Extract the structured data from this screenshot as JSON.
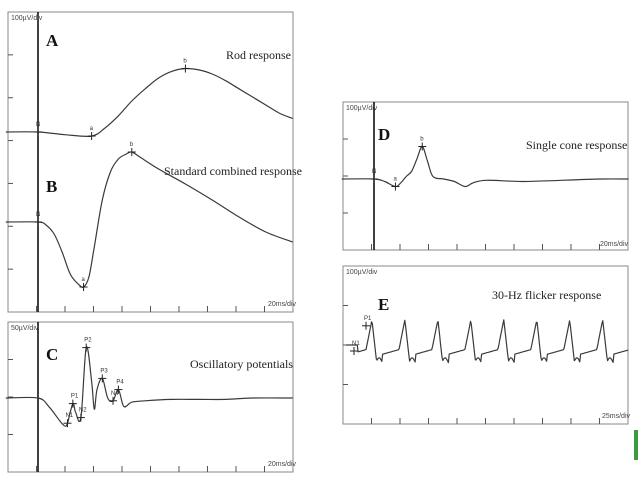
{
  "figure": {
    "accent_color": "#3c9a3c",
    "trace_color": "#3a3a3a"
  },
  "chart_data": [
    {
      "type": "line",
      "id": "A",
      "panel_letter": "A",
      "title": "Rod response",
      "amp_scale": "100µV/div",
      "time_scale": "20ms/div",
      "markers": [
        {
          "label": "N",
          "t": 0
        },
        {
          "label": "a",
          "t": 20
        },
        {
          "label": "b",
          "t": 55
        }
      ],
      "points": [
        [
          -12,
          0
        ],
        [
          0,
          0
        ],
        [
          10,
          -0.2
        ],
        [
          20,
          -0.3
        ],
        [
          25,
          0.3
        ],
        [
          30,
          1.2
        ],
        [
          35,
          2.3
        ],
        [
          40,
          3.2
        ],
        [
          45,
          4.0
        ],
        [
          50,
          4.5
        ],
        [
          55,
          4.7
        ],
        [
          60,
          4.6
        ],
        [
          65,
          4.3
        ],
        [
          70,
          3.8
        ],
        [
          75,
          3.2
        ],
        [
          80,
          2.6
        ],
        [
          85,
          2.0
        ],
        [
          90,
          1.4
        ],
        [
          95,
          1.0
        ]
      ]
    },
    {
      "type": "line",
      "id": "B",
      "panel_letter": "B",
      "title": "Standard combined response",
      "amp_scale": "",
      "time_scale": "20ms/div",
      "markers": [
        {
          "label": "N",
          "t": 0
        },
        {
          "label": "a",
          "t": 17
        },
        {
          "label": "b",
          "t": 35
        }
      ],
      "points": [
        [
          -12,
          0
        ],
        [
          0,
          0
        ],
        [
          3,
          -0.3
        ],
        [
          6,
          -1.2
        ],
        [
          9,
          -3.0
        ],
        [
          12,
          -5.2
        ],
        [
          15,
          -6.2
        ],
        [
          17,
          -6.5
        ],
        [
          19,
          -5.5
        ],
        [
          21,
          -2.5
        ],
        [
          24,
          2.2
        ],
        [
          27,
          5.0
        ],
        [
          30,
          6.3
        ],
        [
          33,
          6.8
        ],
        [
          35,
          7.0
        ],
        [
          38,
          6.5
        ],
        [
          45,
          5.3
        ],
        [
          55,
          3.8
        ],
        [
          65,
          2.2
        ],
        [
          75,
          0.5
        ],
        [
          85,
          -1.0
        ],
        [
          95,
          -2.0
        ]
      ]
    },
    {
      "type": "line",
      "id": "C",
      "panel_letter": "C",
      "title": "Oscillatory potentials",
      "amp_scale": "50µV/div",
      "time_scale": "20ms/div",
      "markers": [
        {
          "label": "P1",
          "t": 13
        },
        {
          "label": "P2",
          "t": 18
        },
        {
          "label": "P3",
          "t": 24
        },
        {
          "label": "P4",
          "t": 30
        },
        {
          "label": "N1",
          "t": 11
        },
        {
          "label": "N2",
          "t": 16
        },
        {
          "label": "N4",
          "t": 28
        }
      ],
      "points": [
        [
          -12,
          0
        ],
        [
          0,
          0
        ],
        [
          4,
          -0.6
        ],
        [
          8,
          -1.6
        ],
        [
          10,
          -2.0
        ],
        [
          11,
          -1.8
        ],
        [
          13,
          -0.4
        ],
        [
          14,
          -1.0
        ],
        [
          16,
          -1.4
        ],
        [
          18,
          3.6
        ],
        [
          20,
          1.2
        ],
        [
          21,
          -0.8
        ],
        [
          22,
          0.6
        ],
        [
          24,
          1.4
        ],
        [
          26,
          0.0
        ],
        [
          28,
          -0.2
        ],
        [
          30,
          0.6
        ],
        [
          32,
          -0.6
        ],
        [
          35,
          -0.3
        ],
        [
          40,
          -0.2
        ],
        [
          50,
          -0.1
        ],
        [
          60,
          -0.1
        ],
        [
          70,
          -0.1
        ],
        [
          80,
          0.0
        ],
        [
          95,
          0.0
        ]
      ]
    },
    {
      "type": "line",
      "id": "D",
      "panel_letter": "D",
      "title": "Single cone response",
      "amp_scale": "100µV/div",
      "time_scale": "20ms/div",
      "markers": [
        {
          "label": "N",
          "t": 0
        },
        {
          "label": "a",
          "t": 8
        },
        {
          "label": "b",
          "t": 18
        }
      ],
      "points": [
        [
          -12,
          0
        ],
        [
          0,
          0
        ],
        [
          4,
          -0.2
        ],
        [
          8,
          -0.6
        ],
        [
          10,
          -0.3
        ],
        [
          12,
          0.2
        ],
        [
          14,
          0.6
        ],
        [
          16,
          1.6
        ],
        [
          18,
          2.6
        ],
        [
          20,
          1.4
        ],
        [
          22,
          0.2
        ],
        [
          26,
          0.0
        ],
        [
          30,
          -0.2
        ],
        [
          34,
          -0.6
        ],
        [
          37,
          -0.3
        ],
        [
          42,
          -0.1
        ],
        [
          55,
          -0.2
        ],
        [
          70,
          -0.1
        ],
        [
          85,
          0.0
        ],
        [
          95,
          0.0
        ]
      ]
    },
    {
      "type": "line",
      "id": "E",
      "panel_letter": "E",
      "title": "30-Hz flicker response",
      "amp_scale": "100µV/div",
      "time_scale": "25ms/div",
      "markers": [
        {
          "label": "P1",
          "t": 0
        },
        {
          "label": "N1",
          "t": -4
        }
      ],
      "flicker_period_ms": 33.3,
      "trough_uv": -55,
      "peak_uv": 60
    }
  ]
}
